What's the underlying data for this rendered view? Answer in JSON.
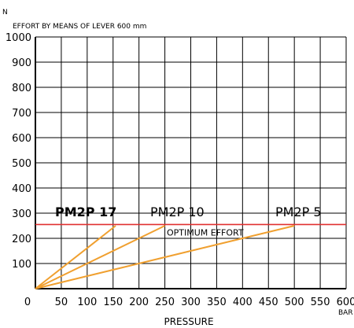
{
  "chart_data": {
    "type": "line",
    "title": "EFFORT BY MEANS OF LEVER 600 mm",
    "y_unit": "N",
    "x_unit": "BAR",
    "xlabel": "PRESSURE",
    "ylabel": "",
    "xlim": [
      0,
      600
    ],
    "ylim": [
      0,
      1000
    ],
    "x_ticks": [
      "0",
      "50",
      "100",
      "150",
      "200",
      "250",
      "300",
      "350",
      "400",
      "450",
      "500",
      "550",
      "600"
    ],
    "y_ticks": [
      "100",
      "200",
      "300",
      "400",
      "500",
      "600",
      "700",
      "800",
      "900",
      "1000"
    ],
    "grid": true,
    "series": [
      {
        "name": "PM2P 17",
        "x": [
          0,
          155
        ],
        "y": [
          0,
          250
        ],
        "color": "#f0a030"
      },
      {
        "name": "PM2P 10",
        "x": [
          0,
          250
        ],
        "y": [
          0,
          250
        ],
        "color": "#f0a030"
      },
      {
        "name": "PM2P 5",
        "x": [
          0,
          500
        ],
        "y": [
          0,
          250
        ],
        "color": "#f0a030"
      }
    ],
    "reference_line": {
      "label": "OPTIMUM EFFORT",
      "y": 255,
      "color": "#e03030"
    }
  }
}
